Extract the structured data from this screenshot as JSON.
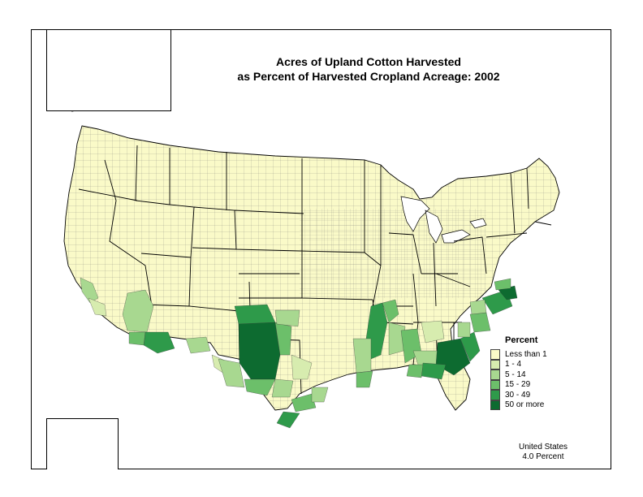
{
  "title": {
    "line1": "Acres of Upland Cotton Harvested",
    "line2": "as Percent of Harvested Cropland Acreage:  2002"
  },
  "legend": {
    "title": "Percent",
    "classes": [
      {
        "label": "Less than 1",
        "color": "#fafac8"
      },
      {
        "label": "1 - 4",
        "color": "#d7ecaf"
      },
      {
        "label": "5 - 14",
        "color": "#a8d890"
      },
      {
        "label": "15 - 29",
        "color": "#6cbf6a"
      },
      {
        "label": "30 - 49",
        "color": "#2e9a4a"
      },
      {
        "label": "50 or more",
        "color": "#0d6b30"
      }
    ]
  },
  "summary": {
    "region": "United States",
    "value": "4.0 Percent"
  }
}
